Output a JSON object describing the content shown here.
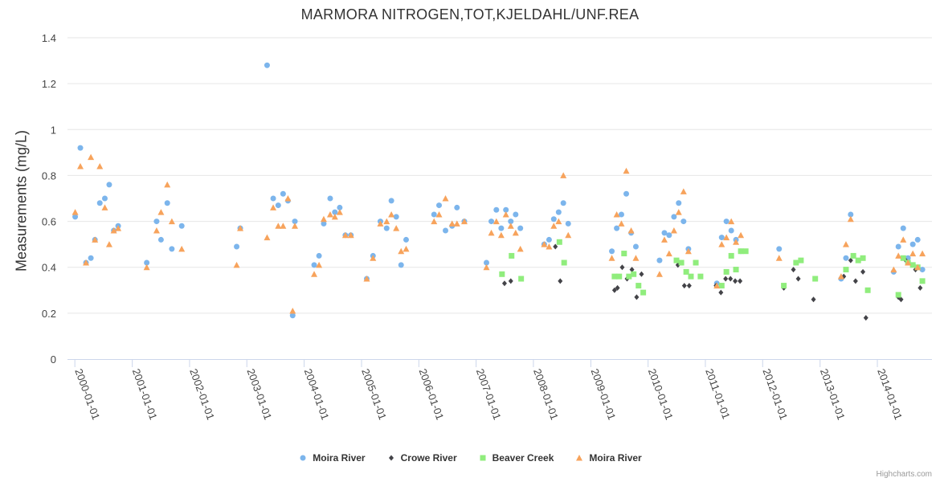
{
  "chart_data": {
    "type": "scatter",
    "title": "MARMORA NITROGEN,TOT,KJELDAHL/UNF.REA",
    "xlabel": "",
    "ylabel": "Measurements (mg/L)",
    "ylim": [
      0,
      1.4
    ],
    "yticks": [
      "0",
      "0.2",
      "0.4",
      "0.6",
      "0.8",
      "1",
      "1.2",
      "1.4"
    ],
    "xlim": [
      "1999-11-15",
      "2014-12-15"
    ],
    "xticks": [
      "2000-01-01",
      "2001-01-01",
      "2002-01-01",
      "2003-01-01",
      "2004-01-01",
      "2005-01-01",
      "2006-01-01",
      "2007-01-01",
      "2008-01-01",
      "2009-01-01",
      "2010-01-01",
      "2011-01-01",
      "2012-01-01",
      "2013-01-01",
      "2014-01-01"
    ],
    "grid": "horizontal",
    "legend_position": "bottom-center",
    "series": [
      {
        "name": "Moira River",
        "marker": "circle",
        "color": "#7cb5ec",
        "points": [
          [
            "2000-01-03",
            0.62
          ],
          [
            "2000-02-05",
            0.92
          ],
          [
            "2000-03-12",
            0.42
          ],
          [
            "2000-04-12",
            0.44
          ],
          [
            "2000-05-08",
            0.52
          ],
          [
            "2000-06-08",
            0.68
          ],
          [
            "2000-07-10",
            0.7
          ],
          [
            "2000-08-07",
            0.76
          ],
          [
            "2000-09-05",
            0.56
          ],
          [
            "2000-10-03",
            0.58
          ],
          [
            "2001-04-03",
            0.42
          ],
          [
            "2001-06-05",
            0.6
          ],
          [
            "2001-07-03",
            0.52
          ],
          [
            "2001-08-12",
            0.68
          ],
          [
            "2001-09-10",
            0.48
          ],
          [
            "2001-11-12",
            0.58
          ],
          [
            "2002-10-28",
            0.49
          ],
          [
            "2002-11-20",
            0.57
          ],
          [
            "2003-05-10",
            1.28
          ],
          [
            "2003-06-18",
            0.7
          ],
          [
            "2003-07-20",
            0.67
          ],
          [
            "2003-08-20",
            0.72
          ],
          [
            "2003-09-20",
            0.69
          ],
          [
            "2003-10-20",
            0.19
          ],
          [
            "2003-11-03",
            0.6
          ],
          [
            "2004-03-05",
            0.41
          ],
          [
            "2004-04-05",
            0.45
          ],
          [
            "2004-05-05",
            0.59
          ],
          [
            "2004-06-15",
            0.7
          ],
          [
            "2004-07-15",
            0.64
          ],
          [
            "2004-08-15",
            0.66
          ],
          [
            "2004-09-20",
            0.54
          ],
          [
            "2004-10-25",
            0.54
          ],
          [
            "2005-02-03",
            0.35
          ],
          [
            "2005-03-15",
            0.45
          ],
          [
            "2005-05-01",
            0.6
          ],
          [
            "2005-06-10",
            0.57
          ],
          [
            "2005-07-10",
            0.69
          ],
          [
            "2005-08-10",
            0.62
          ],
          [
            "2005-09-10",
            0.41
          ],
          [
            "2005-10-12",
            0.52
          ],
          [
            "2006-04-08",
            0.63
          ],
          [
            "2006-05-10",
            0.67
          ],
          [
            "2006-06-20",
            0.56
          ],
          [
            "2006-08-01",
            0.58
          ],
          [
            "2006-09-01",
            0.66
          ],
          [
            "2006-10-18",
            0.6
          ],
          [
            "2007-03-08",
            0.42
          ],
          [
            "2007-04-08",
            0.6
          ],
          [
            "2007-05-10",
            0.65
          ],
          [
            "2007-06-10",
            0.57
          ],
          [
            "2007-07-10",
            0.65
          ],
          [
            "2007-08-10",
            0.6
          ],
          [
            "2007-09-10",
            0.63
          ],
          [
            "2007-10-10",
            0.57
          ],
          [
            "2008-03-10",
            0.5
          ],
          [
            "2008-04-10",
            0.52
          ],
          [
            "2008-05-10",
            0.61
          ],
          [
            "2008-06-10",
            0.64
          ],
          [
            "2008-07-10",
            0.68
          ],
          [
            "2008-08-10",
            0.59
          ],
          [
            "2009-05-15",
            0.47
          ],
          [
            "2009-06-15",
            0.57
          ],
          [
            "2009-07-15",
            0.63
          ],
          [
            "2009-08-15",
            0.72
          ],
          [
            "2009-09-15",
            0.55
          ],
          [
            "2009-10-15",
            0.49
          ],
          [
            "2010-03-15",
            0.43
          ],
          [
            "2010-04-15",
            0.55
          ],
          [
            "2010-05-15",
            0.54
          ],
          [
            "2010-06-15",
            0.62
          ],
          [
            "2010-07-15",
            0.68
          ],
          [
            "2010-08-15",
            0.6
          ],
          [
            "2010-09-15",
            0.48
          ],
          [
            "2011-03-15",
            0.33
          ],
          [
            "2011-04-15",
            0.53
          ],
          [
            "2011-05-15",
            0.6
          ],
          [
            "2011-06-15",
            0.56
          ],
          [
            "2011-07-15",
            0.52
          ],
          [
            "2011-08-15",
            0.47
          ],
          [
            "2012-04-15",
            0.48
          ],
          [
            "2013-05-15",
            0.35
          ],
          [
            "2013-06-15",
            0.44
          ],
          [
            "2013-07-15",
            0.63
          ],
          [
            "2014-04-15",
            0.38
          ],
          [
            "2014-05-15",
            0.49
          ],
          [
            "2014-06-15",
            0.57
          ],
          [
            "2014-07-15",
            0.44
          ],
          [
            "2014-08-15",
            0.5
          ],
          [
            "2014-09-15",
            0.52
          ],
          [
            "2014-10-15",
            0.39
          ]
        ]
      },
      {
        "name": "Crowe River",
        "marker": "diamond",
        "color": "#434348",
        "points": [
          [
            "2007-07-01",
            0.33
          ],
          [
            "2007-08-10",
            0.34
          ],
          [
            "2008-05-20",
            0.49
          ],
          [
            "2008-06-20",
            0.34
          ],
          [
            "2009-06-01",
            0.3
          ],
          [
            "2009-06-20",
            0.31
          ],
          [
            "2009-07-20",
            0.4
          ],
          [
            "2009-08-20",
            0.35
          ],
          [
            "2009-09-20",
            0.39
          ],
          [
            "2009-10-20",
            0.27
          ],
          [
            "2009-11-20",
            0.37
          ],
          [
            "2010-07-10",
            0.41
          ],
          [
            "2010-08-20",
            0.32
          ],
          [
            "2010-09-20",
            0.32
          ],
          [
            "2011-03-10",
            0.32
          ],
          [
            "2011-04-10",
            0.29
          ],
          [
            "2011-05-10",
            0.35
          ],
          [
            "2011-06-10",
            0.35
          ],
          [
            "2011-07-10",
            0.34
          ],
          [
            "2011-08-10",
            0.34
          ],
          [
            "2012-05-15",
            0.31
          ],
          [
            "2012-07-15",
            0.39
          ],
          [
            "2012-08-15",
            0.35
          ],
          [
            "2012-11-20",
            0.26
          ],
          [
            "2013-06-01",
            0.36
          ],
          [
            "2013-07-15",
            0.43
          ],
          [
            "2013-08-15",
            0.34
          ],
          [
            "2013-10-01",
            0.38
          ],
          [
            "2013-10-20",
            0.18
          ],
          [
            "2014-05-15",
            0.27
          ],
          [
            "2014-06-01",
            0.26
          ],
          [
            "2014-07-01",
            0.43
          ],
          [
            "2014-09-01",
            0.39
          ],
          [
            "2014-10-01",
            0.31
          ]
        ]
      },
      {
        "name": "Beaver Creek",
        "marker": "square",
        "color": "#90ed7d",
        "points": [
          [
            "2007-06-15",
            0.37
          ],
          [
            "2007-08-15",
            0.45
          ],
          [
            "2007-10-15",
            0.35
          ],
          [
            "2008-06-15",
            0.51
          ],
          [
            "2008-07-15",
            0.42
          ],
          [
            "2009-06-01",
            0.36
          ],
          [
            "2009-07-01",
            0.36
          ],
          [
            "2009-08-01",
            0.46
          ],
          [
            "2009-09-01",
            0.36
          ],
          [
            "2009-10-01",
            0.37
          ],
          [
            "2009-11-01",
            0.32
          ],
          [
            "2009-12-01",
            0.29
          ],
          [
            "2010-07-01",
            0.43
          ],
          [
            "2010-08-01",
            0.42
          ],
          [
            "2010-09-01",
            0.38
          ],
          [
            "2010-10-01",
            0.36
          ],
          [
            "2010-11-01",
            0.42
          ],
          [
            "2010-12-01",
            0.36
          ],
          [
            "2011-04-15",
            0.32
          ],
          [
            "2011-05-15",
            0.38
          ],
          [
            "2011-06-15",
            0.45
          ],
          [
            "2011-07-15",
            0.39
          ],
          [
            "2011-08-15",
            0.47
          ],
          [
            "2011-09-15",
            0.47
          ],
          [
            "2012-05-15",
            0.32
          ],
          [
            "2012-08-01",
            0.42
          ],
          [
            "2012-09-01",
            0.43
          ],
          [
            "2012-12-01",
            0.35
          ],
          [
            "2013-06-15",
            0.39
          ],
          [
            "2013-08-01",
            0.45
          ],
          [
            "2013-09-01",
            0.43
          ],
          [
            "2013-10-01",
            0.44
          ],
          [
            "2013-11-01",
            0.3
          ],
          [
            "2014-05-15",
            0.28
          ],
          [
            "2014-06-15",
            0.44
          ],
          [
            "2014-07-15",
            0.42
          ],
          [
            "2014-08-15",
            0.41
          ],
          [
            "2014-09-15",
            0.4
          ],
          [
            "2014-10-15",
            0.34
          ]
        ]
      },
      {
        "name": "Moira River",
        "marker": "triangle",
        "color": "#f7a35c",
        "points": [
          [
            "2000-01-03",
            0.64
          ],
          [
            "2000-02-05",
            0.84
          ],
          [
            "2000-03-12",
            0.42
          ],
          [
            "2000-04-12",
            0.88
          ],
          [
            "2000-05-08",
            0.52
          ],
          [
            "2000-06-08",
            0.84
          ],
          [
            "2000-07-10",
            0.66
          ],
          [
            "2000-08-07",
            0.5
          ],
          [
            "2000-09-05",
            0.56
          ],
          [
            "2000-10-03",
            0.57
          ],
          [
            "2001-04-03",
            0.4
          ],
          [
            "2001-06-05",
            0.56
          ],
          [
            "2001-07-03",
            0.64
          ],
          [
            "2001-08-12",
            0.76
          ],
          [
            "2001-09-10",
            0.6
          ],
          [
            "2001-11-12",
            0.48
          ],
          [
            "2002-10-28",
            0.41
          ],
          [
            "2002-11-20",
            0.57
          ],
          [
            "2003-05-10",
            0.53
          ],
          [
            "2003-06-18",
            0.66
          ],
          [
            "2003-07-20",
            0.58
          ],
          [
            "2003-08-20",
            0.58
          ],
          [
            "2003-09-20",
            0.7
          ],
          [
            "2003-10-20",
            0.21
          ],
          [
            "2003-11-03",
            0.58
          ],
          [
            "2004-03-05",
            0.37
          ],
          [
            "2004-04-05",
            0.41
          ],
          [
            "2004-05-05",
            0.61
          ],
          [
            "2004-06-15",
            0.63
          ],
          [
            "2004-07-15",
            0.62
          ],
          [
            "2004-08-15",
            0.64
          ],
          [
            "2004-09-20",
            0.54
          ],
          [
            "2004-10-25",
            0.54
          ],
          [
            "2005-02-03",
            0.35
          ],
          [
            "2005-03-15",
            0.44
          ],
          [
            "2005-05-01",
            0.59
          ],
          [
            "2005-06-10",
            0.6
          ],
          [
            "2005-07-10",
            0.63
          ],
          [
            "2005-08-10",
            0.57
          ],
          [
            "2005-09-10",
            0.47
          ],
          [
            "2005-10-12",
            0.48
          ],
          [
            "2006-04-08",
            0.6
          ],
          [
            "2006-05-10",
            0.63
          ],
          [
            "2006-06-20",
            0.7
          ],
          [
            "2006-08-01",
            0.59
          ],
          [
            "2006-09-01",
            0.59
          ],
          [
            "2006-10-18",
            0.6
          ],
          [
            "2007-03-08",
            0.4
          ],
          [
            "2007-04-08",
            0.55
          ],
          [
            "2007-05-10",
            0.6
          ],
          [
            "2007-06-10",
            0.54
          ],
          [
            "2007-07-10",
            0.63
          ],
          [
            "2007-08-10",
            0.58
          ],
          [
            "2007-09-10",
            0.55
          ],
          [
            "2007-10-10",
            0.48
          ],
          [
            "2008-03-10",
            0.5
          ],
          [
            "2008-04-10",
            0.49
          ],
          [
            "2008-05-10",
            0.58
          ],
          [
            "2008-06-10",
            0.6
          ],
          [
            "2008-07-10",
            0.8
          ],
          [
            "2008-08-10",
            0.54
          ],
          [
            "2009-05-15",
            0.44
          ],
          [
            "2009-06-15",
            0.63
          ],
          [
            "2009-07-15",
            0.59
          ],
          [
            "2009-08-15",
            0.82
          ],
          [
            "2009-09-15",
            0.56
          ],
          [
            "2009-10-15",
            0.44
          ],
          [
            "2010-03-15",
            0.37
          ],
          [
            "2010-04-15",
            0.52
          ],
          [
            "2010-05-15",
            0.46
          ],
          [
            "2010-06-15",
            0.56
          ],
          [
            "2010-07-15",
            0.64
          ],
          [
            "2010-08-15",
            0.73
          ],
          [
            "2010-09-15",
            0.47
          ],
          [
            "2011-03-15",
            0.32
          ],
          [
            "2011-04-15",
            0.5
          ],
          [
            "2011-05-15",
            0.53
          ],
          [
            "2011-06-15",
            0.6
          ],
          [
            "2011-07-15",
            0.51
          ],
          [
            "2011-08-15",
            0.54
          ],
          [
            "2012-04-15",
            0.44
          ],
          [
            "2013-05-15",
            0.36
          ],
          [
            "2013-06-15",
            0.5
          ],
          [
            "2013-07-15",
            0.61
          ],
          [
            "2014-04-15",
            0.39
          ],
          [
            "2014-05-15",
            0.45
          ],
          [
            "2014-06-15",
            0.52
          ],
          [
            "2014-07-15",
            0.42
          ],
          [
            "2014-08-15",
            0.46
          ],
          [
            "2014-09-15",
            0.4
          ],
          [
            "2014-10-15",
            0.46
          ]
        ]
      }
    ]
  },
  "credits": "Highcharts.com"
}
